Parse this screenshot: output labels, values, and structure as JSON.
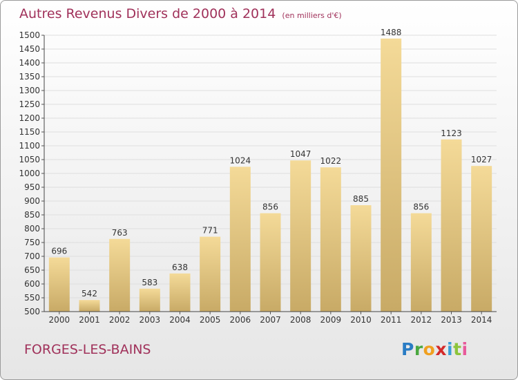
{
  "title": "Autres Revenus Divers de 2000 à 2014",
  "unit": "(en milliers d'€)",
  "town": "FORGES-LES-BAINS",
  "logo": {
    "text": "Proxiti",
    "colors": [
      "#2a7cc4",
      "#4aa840",
      "#f0a020",
      "#d42a2a",
      "#3a9fd8",
      "#8cc43c",
      "#e85a9a"
    ]
  },
  "colors": {
    "title": "#a0315a",
    "bar_light": "#f4da98",
    "bar_dark": "#c8aa66",
    "grid": "#dedede"
  },
  "chart_data": {
    "type": "bar",
    "title": "Autres Revenus Divers de 2000 à 2014",
    "subtitle": "(en milliers d'€)",
    "categories": [
      "2000",
      "2001",
      "2002",
      "2003",
      "2004",
      "2005",
      "2006",
      "2007",
      "2008",
      "2009",
      "2010",
      "2011",
      "2012",
      "2013",
      "2014"
    ],
    "values": [
      696,
      542,
      763,
      583,
      638,
      771,
      1024,
      856,
      1047,
      1022,
      885,
      1488,
      856,
      1123,
      1027
    ],
    "ylim": [
      500,
      1500
    ],
    "ytick_step": 50,
    "grid": true,
    "legend": "none"
  }
}
